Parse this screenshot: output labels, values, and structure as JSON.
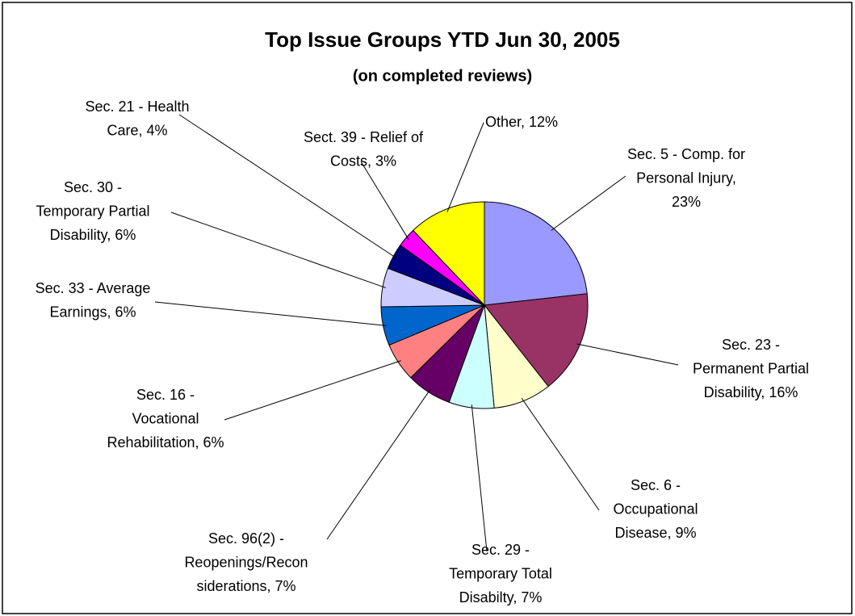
{
  "chart_data": {
    "type": "pie",
    "title": "Top Issue Groups YTD Jun 30, 2005",
    "subtitle": "(on completed reviews)",
    "values": [
      23,
      16,
      9,
      7,
      7,
      6,
      6,
      6,
      4,
      3,
      12
    ],
    "value_labels": [
      [
        "Sec. 5 - Comp. for",
        "Personal Injury,",
        "23%"
      ],
      [
        "Sec. 23 -",
        "Permanent Partial",
        "Disability, 16%"
      ],
      [
        "Sec. 6 -",
        "Occupational",
        "Disease, 9%"
      ],
      [
        "Sec. 29 -",
        "Temporary Total",
        "Disabilty, 7%"
      ],
      [
        "Sec. 96(2) -",
        "Reopenings/Recon",
        "siderations, 7%"
      ],
      [
        "Sec. 16 -",
        "Vocational",
        "Rehabilitation, 6%"
      ],
      [
        "Sec. 33 - Average",
        "Earnings, 6%"
      ],
      [
        "Sec. 30 -",
        "Temporary Partial",
        "Disability, 6%"
      ],
      [
        "Sec. 21 - Health",
        "Care, 4%"
      ],
      [
        "Sect. 39 - Relief of",
        "Costs, 3%"
      ],
      [
        "Other, 12%"
      ]
    ],
    "colors": [
      "#9999FF",
      "#993366",
      "#FFFFCC",
      "#CCFFFF",
      "#660066",
      "#FF8080",
      "#0066CC",
      "#CCCCFF",
      "#000080",
      "#FF00FF",
      "#FFFF00"
    ]
  }
}
